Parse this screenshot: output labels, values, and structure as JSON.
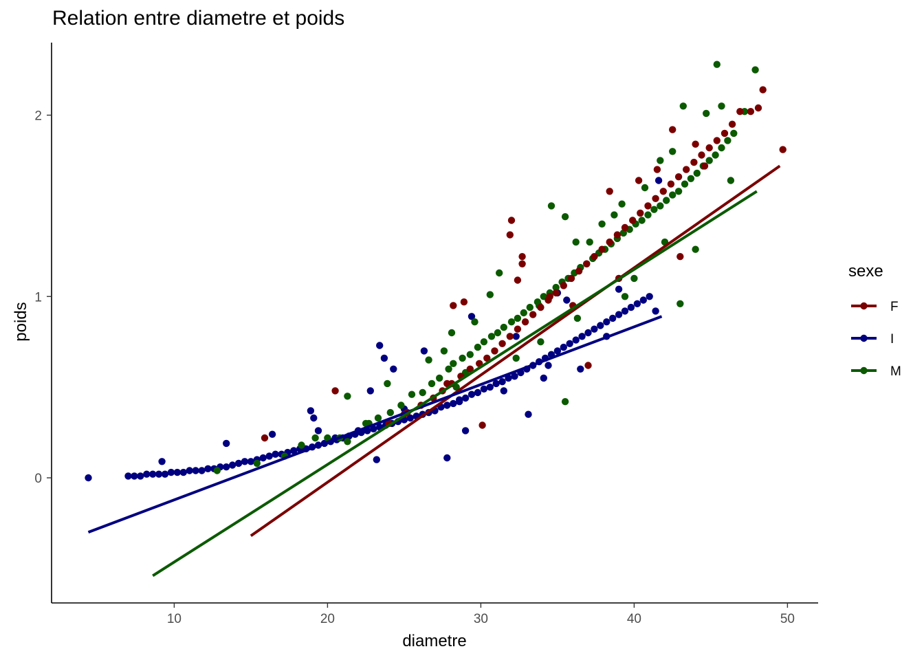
{
  "chart_data": {
    "type": "scatter",
    "title": "Relation entre diametre et poids",
    "xlabel": "diametre",
    "ylabel": "poids",
    "xlim": [
      2,
      52
    ],
    "ylim": [
      -0.69,
      2.4
    ],
    "x_ticks": [
      10,
      20,
      30,
      40,
      50
    ],
    "y_ticks": [
      0,
      1,
      2
    ],
    "grid": false,
    "legend": {
      "title": "sexe",
      "placement": "right",
      "entries": [
        "F",
        "I",
        "M"
      ]
    },
    "colors": {
      "F": "#7a0000",
      "I": "#000080",
      "M": "#0b5a00"
    },
    "trend_lines": [
      {
        "name": "F",
        "x": [
          15.0,
          49.5
        ],
        "y": [
          -0.32,
          1.72
        ]
      },
      {
        "name": "I",
        "x": [
          4.4,
          41.8
        ],
        "y": [
          -0.3,
          0.89
        ]
      },
      {
        "name": "M",
        "x": [
          8.6,
          48.0
        ],
        "y": [
          -0.54,
          1.58
        ]
      }
    ],
    "series": [
      {
        "name": "I",
        "x": [
          4.4,
          7.0,
          7.4,
          7.8,
          8.2,
          8.6,
          9.0,
          9.4,
          9.8,
          10.2,
          10.6,
          11.0,
          11.4,
          11.8,
          12.2,
          12.6,
          13.0,
          13.4,
          13.8,
          14.2,
          14.6,
          15.0,
          15.4,
          15.8,
          16.2,
          16.6,
          17.0,
          17.4,
          17.8,
          18.2,
          18.6,
          19.0,
          19.4,
          19.8,
          20.2,
          20.6,
          21.0,
          21.4,
          21.8,
          22.2,
          22.6,
          23.0,
          23.4,
          23.8,
          24.2,
          24.6,
          25.0,
          25.4,
          25.8,
          26.2,
          26.6,
          27.0,
          27.4,
          27.8,
          28.2,
          28.6,
          29.0,
          29.4,
          29.8,
          30.2,
          30.6,
          31.0,
          31.4,
          31.8,
          32.2,
          32.6,
          33.0,
          33.4,
          33.8,
          34.2,
          34.6,
          35.0,
          35.4,
          35.8,
          36.2,
          36.6,
          37.0,
          37.4,
          37.8,
          38.2,
          38.6,
          39.0,
          39.4,
          39.8,
          40.2,
          40.6,
          41.0,
          41.6,
          9.2,
          13.4,
          16.4,
          18.9,
          19.1,
          19.4,
          23.4,
          23.7,
          24.3,
          26.3,
          22.8,
          23.2,
          27.8,
          29.0,
          29.4,
          33.1,
          32.3,
          34.4,
          35.0,
          35.6,
          41.4,
          36.5,
          38.2,
          39.0,
          20.5,
          22.0,
          25.0,
          28.6,
          31.5,
          34.1
        ],
        "y": [
          0.0,
          0.01,
          0.01,
          0.01,
          0.02,
          0.02,
          0.02,
          0.02,
          0.03,
          0.03,
          0.03,
          0.04,
          0.04,
          0.04,
          0.05,
          0.05,
          0.06,
          0.06,
          0.07,
          0.08,
          0.09,
          0.09,
          0.1,
          0.11,
          0.12,
          0.13,
          0.13,
          0.14,
          0.15,
          0.16,
          0.16,
          0.17,
          0.18,
          0.19,
          0.2,
          0.21,
          0.22,
          0.23,
          0.24,
          0.25,
          0.26,
          0.27,
          0.28,
          0.29,
          0.3,
          0.31,
          0.32,
          0.33,
          0.34,
          0.35,
          0.36,
          0.37,
          0.39,
          0.4,
          0.41,
          0.43,
          0.44,
          0.46,
          0.47,
          0.49,
          0.5,
          0.52,
          0.53,
          0.55,
          0.56,
          0.58,
          0.6,
          0.62,
          0.64,
          0.66,
          0.68,
          0.7,
          0.72,
          0.74,
          0.76,
          0.78,
          0.8,
          0.82,
          0.84,
          0.86,
          0.88,
          0.9,
          0.92,
          0.94,
          0.96,
          0.98,
          1.0,
          1.64,
          0.09,
          0.19,
          0.24,
          0.37,
          0.33,
          0.26,
          0.73,
          0.66,
          0.6,
          0.7,
          0.48,
          0.1,
          0.11,
          0.26,
          0.89,
          0.35,
          0.78,
          0.62,
          1.02,
          0.98,
          0.92,
          0.6,
          0.78,
          1.04,
          0.22,
          0.26,
          0.38,
          0.42,
          0.48,
          0.55
        ]
      },
      {
        "name": "M",
        "x": [
          12.8,
          15.4,
          17.2,
          18.3,
          19.2,
          20.0,
          20.8,
          21.3,
          22.5,
          23.3,
          24.1,
          24.8,
          25.5,
          26.2,
          26.8,
          27.3,
          27.9,
          28.2,
          28.8,
          29.3,
          29.8,
          30.2,
          30.7,
          31.1,
          31.5,
          32.0,
          32.4,
          32.8,
          33.2,
          33.7,
          34.1,
          34.5,
          34.9,
          35.3,
          35.7,
          36.1,
          36.5,
          36.9,
          37.3,
          37.7,
          38.1,
          38.5,
          38.9,
          39.3,
          39.7,
          40.1,
          40.5,
          40.9,
          41.3,
          41.7,
          42.1,
          42.5,
          42.9,
          43.3,
          43.7,
          44.1,
          44.5,
          44.9,
          45.3,
          45.7,
          46.1,
          46.5,
          47.2,
          47.9,
          45.4,
          45.7,
          43.2,
          44.7,
          42.5,
          41.7,
          40.7,
          39.2,
          38.7,
          37.9,
          37.1,
          36.2,
          35.5,
          34.6,
          33.8,
          31.2,
          30.6,
          29.6,
          28.1,
          27.6,
          26.6,
          23.9,
          21.3,
          22.7,
          35.5,
          43.0,
          46.3,
          42.0,
          44.0,
          40.0,
          39.4,
          36.3,
          33.9,
          32.3,
          29.0,
          28.4
        ],
        "y": [
          0.04,
          0.08,
          0.12,
          0.18,
          0.22,
          0.22,
          0.22,
          0.2,
          0.3,
          0.33,
          0.36,
          0.4,
          0.46,
          0.47,
          0.52,
          0.55,
          0.6,
          0.63,
          0.66,
          0.68,
          0.72,
          0.75,
          0.78,
          0.8,
          0.83,
          0.86,
          0.88,
          0.91,
          0.94,
          0.97,
          1.0,
          1.02,
          1.05,
          1.08,
          1.1,
          1.13,
          1.16,
          1.18,
          1.21,
          1.24,
          1.26,
          1.29,
          1.32,
          1.35,
          1.37,
          1.4,
          1.42,
          1.45,
          1.48,
          1.5,
          1.53,
          1.56,
          1.58,
          1.62,
          1.65,
          1.68,
          1.72,
          1.75,
          1.78,
          1.82,
          1.86,
          1.9,
          2.02,
          2.25,
          2.28,
          2.05,
          2.05,
          2.01,
          1.8,
          1.75,
          1.6,
          1.51,
          1.45,
          1.4,
          1.3,
          1.3,
          1.44,
          1.5,
          0.95,
          1.13,
          1.01,
          0.86,
          0.8,
          0.7,
          0.65,
          0.52,
          0.45,
          0.3,
          0.42,
          0.96,
          1.64,
          1.3,
          1.26,
          1.1,
          1.0,
          0.88,
          0.75,
          0.66,
          0.58,
          0.5
        ]
      },
      {
        "name": "F",
        "x": [
          15.9,
          20.5,
          24.0,
          25.2,
          26.1,
          26.9,
          27.5,
          28.1,
          28.7,
          29.3,
          29.9,
          30.4,
          30.9,
          31.4,
          31.9,
          32.4,
          32.9,
          33.4,
          33.9,
          34.4,
          34.9,
          35.4,
          35.9,
          36.4,
          36.9,
          37.4,
          37.9,
          38.4,
          38.9,
          39.4,
          39.9,
          40.4,
          40.9,
          41.4,
          41.9,
          42.4,
          42.9,
          43.4,
          43.9,
          44.4,
          44.9,
          45.4,
          45.9,
          46.4,
          46.9,
          47.6,
          48.1,
          48.4,
          49.7,
          28.2,
          28.9,
          32.0,
          31.9,
          32.7,
          32.7,
          32.4,
          34.5,
          38.4,
          40.3,
          41.5,
          42.5,
          44.0,
          44.6,
          37.0,
          27.8,
          30.1,
          25.0,
          36.0,
          39.0,
          43.0
        ],
        "y": [
          0.22,
          0.48,
          0.3,
          0.36,
          0.4,
          0.44,
          0.48,
          0.52,
          0.56,
          0.6,
          0.63,
          0.66,
          0.7,
          0.74,
          0.78,
          0.82,
          0.86,
          0.9,
          0.94,
          0.98,
          1.02,
          1.06,
          1.1,
          1.14,
          1.18,
          1.22,
          1.26,
          1.3,
          1.34,
          1.38,
          1.42,
          1.46,
          1.5,
          1.54,
          1.58,
          1.62,
          1.66,
          1.7,
          1.74,
          1.78,
          1.82,
          1.86,
          1.9,
          1.95,
          2.02,
          2.02,
          2.04,
          2.14,
          1.81,
          0.95,
          0.97,
          1.42,
          1.34,
          1.22,
          1.18,
          1.09,
          1.0,
          1.58,
          1.64,
          1.7,
          1.92,
          1.84,
          1.72,
          0.62,
          0.52,
          0.29,
          0.35,
          0.95,
          1.1,
          1.22
        ]
      }
    ]
  }
}
